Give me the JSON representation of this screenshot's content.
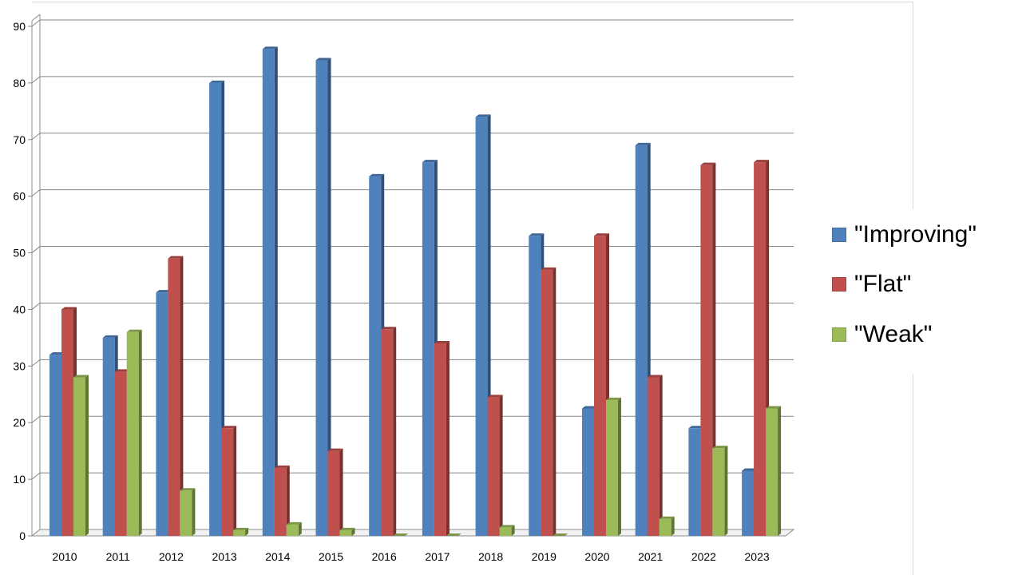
{
  "chart_data": {
    "type": "bar",
    "categories": [
      "2010",
      "2011",
      "2012",
      "2013",
      "2014",
      "2015",
      "2016",
      "2017",
      "2018",
      "2019",
      "2020",
      "2021",
      "2022",
      "2023"
    ],
    "series": [
      {
        "name": "\"Improving\"",
        "color": "#4f81bd",
        "values": [
          32,
          35,
          43,
          80,
          86,
          84,
          63.5,
          66,
          74,
          53,
          22.5,
          69,
          19,
          11.5
        ]
      },
      {
        "name": "\"Flat\"",
        "color": "#c0504d",
        "values": [
          40,
          29,
          49,
          19,
          12,
          15,
          36.5,
          34,
          24.5,
          47,
          53,
          28,
          65.5,
          66
        ]
      },
      {
        "name": "\"Weak\"",
        "color": "#9bbb59",
        "values": [
          28,
          36,
          8,
          1,
          2,
          1,
          0,
          0,
          1.5,
          0,
          24,
          3,
          15.5,
          22.5
        ]
      }
    ],
    "ylim": [
      0,
      90
    ],
    "yticks": [
      0,
      10,
      20,
      30,
      40,
      50,
      60,
      70,
      80,
      90
    ],
    "grid": true,
    "legend_position": "right"
  }
}
